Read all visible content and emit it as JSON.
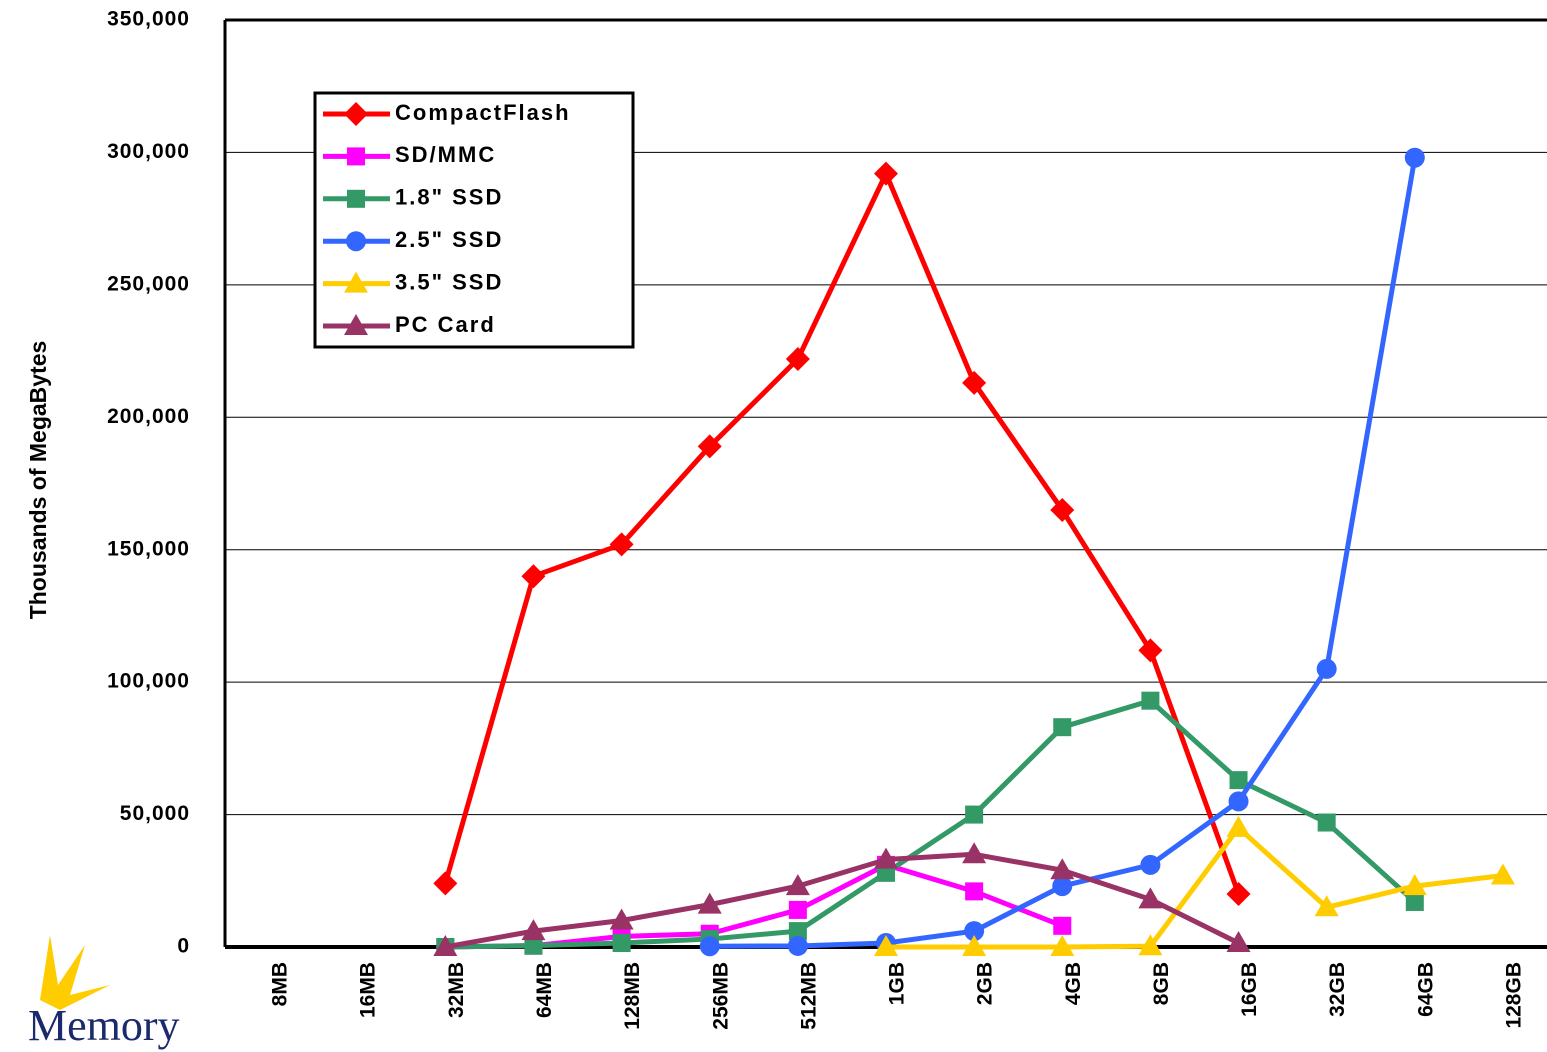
{
  "chart_data": {
    "type": "line",
    "y_label": "Thousands of MegaBytes",
    "logo_text": "Memory",
    "categories": [
      "8MB",
      "16MB",
      "32MB",
      "64MB",
      "128MB",
      "256MB",
      "512MB",
      "1GB",
      "2GB",
      "4GB",
      "8GB",
      "16GB",
      "32GB",
      "64GB",
      "128GB"
    ],
    "series": [
      {
        "name": "CompactFlash",
        "color": "#ff0000",
        "marker": "diamond",
        "values": [
          null,
          null,
          24000,
          140000,
          152000,
          189000,
          222000,
          292000,
          213000,
          165000,
          112000,
          20000,
          null,
          null,
          null
        ]
      },
      {
        "name": "SD/MMC",
        "color": "#ff00ff",
        "marker": "square",
        "values": [
          null,
          null,
          0,
          500,
          4000,
          5000,
          14000,
          31000,
          21000,
          8000,
          null,
          null,
          null,
          null,
          null
        ]
      },
      {
        "name": "1.8\" SSD",
        "color": "#339966",
        "marker": "square",
        "values": [
          null,
          null,
          0,
          500,
          1500,
          3000,
          6000,
          28000,
          50000,
          83000,
          93000,
          63000,
          47000,
          17000,
          null
        ]
      },
      {
        "name": "2.5\" SSD",
        "color": "#3366ff",
        "marker": "circle",
        "values": [
          null,
          null,
          null,
          null,
          null,
          300,
          400,
          1500,
          6000,
          23000,
          31000,
          55000,
          105000,
          298000,
          null
        ]
      },
      {
        "name": "3.5\" SSD",
        "color": "#ffcc00",
        "marker": "triangle",
        "values": [
          null,
          null,
          null,
          null,
          null,
          null,
          null,
          0,
          0,
          0,
          300,
          45000,
          15000,
          23000,
          27000
        ]
      },
      {
        "name": "PC Card",
        "color": "#993366",
        "marker": "triangle",
        "values": [
          null,
          null,
          0,
          6000,
          10000,
          16000,
          23000,
          33000,
          35000,
          29000,
          18000,
          1500,
          null,
          null,
          null
        ]
      }
    ],
    "ylim": [
      0,
      350000
    ],
    "yticks": [
      {
        "value": 0,
        "label": "0"
      },
      {
        "value": 50000,
        "label": "50,000"
      },
      {
        "value": 100000,
        "label": "100,000"
      },
      {
        "value": 150000,
        "label": "150,000"
      },
      {
        "value": 200000,
        "label": "200,000"
      },
      {
        "value": 250000,
        "label": "250,000"
      },
      {
        "value": 300000,
        "label": "300,000"
      },
      {
        "value": 350000,
        "label": "350,000"
      }
    ],
    "grid": true,
    "legend": "upper left"
  }
}
